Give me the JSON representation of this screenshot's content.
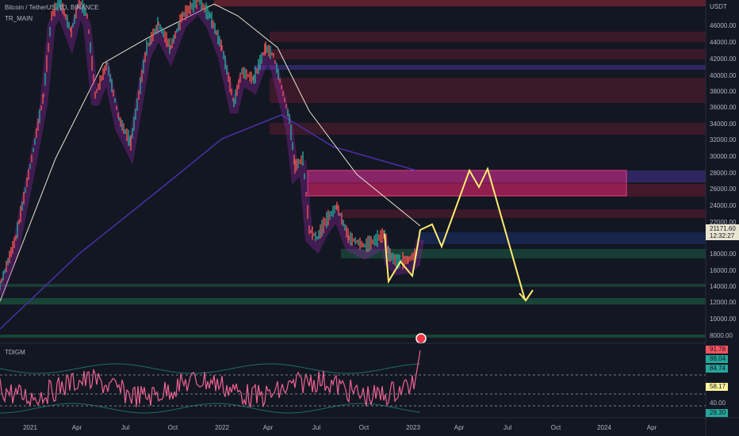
{
  "header": {
    "symbol": "Bitcoin / TetherUS, 1D, BINANCE",
    "indicator": "TR_MAIN"
  },
  "price_axis": {
    "unit": "USDT",
    "labels": [
      "46000.00",
      "44000.00",
      "42000.00",
      "40000.00",
      "38000.00",
      "36000.00",
      "34000.00",
      "32000.00",
      "30000.00",
      "28000.00",
      "26000.00",
      "24000.00",
      "22000.00",
      "18000.00",
      "16000.00",
      "14000.00",
      "12000.00",
      "10000.00",
      "8000.00"
    ]
  },
  "price_tags": {
    "last": "21171.60",
    "countdown": "12:32:27"
  },
  "oscillator": {
    "name": "TDIGM",
    "labels": [
      "91.78",
      "88.04",
      "84.74",
      "58.17",
      "40.00",
      "28.30"
    ]
  },
  "time_axis": {
    "labels": [
      "2021",
      "Apr",
      "Jul",
      "Oct",
      "2022",
      "Apr",
      "Jul",
      "Oct",
      "2023",
      "Apr",
      "Jul",
      "Oct",
      "2024",
      "Apr"
    ]
  }
}
